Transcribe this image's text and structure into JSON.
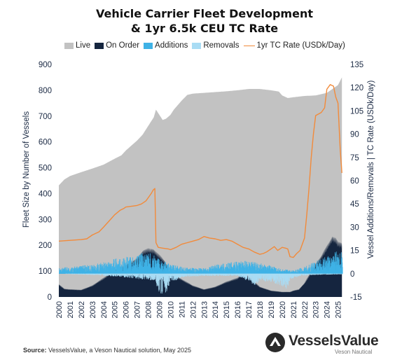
{
  "title_lines": [
    "Vehicle Carrier Fleet Development",
    "& 1yr 6.5k CEU TC Rate"
  ],
  "footer": {
    "source_label": "Source:",
    "source_text": " VesselsValue, a Veson Nautical solution, May 2025"
  },
  "logo": {
    "name": "VesselsValue",
    "sub": "Veson Nautical"
  },
  "colors": {
    "live": "#c2c2c2",
    "on_order": "#15253f",
    "additions": "#3fb2e6",
    "removals": "#a9dcf4",
    "tc_rate": "#f28a3a"
  },
  "chart_data": {
    "type": "area",
    "xlabel": "",
    "ylabel": "Fleet Size by Number of Vessels",
    "y2label": "Vessel Additions/Removals | TC Rate (USDk/Day)",
    "ylim": [
      0,
      900
    ],
    "yticks": [
      0,
      100,
      200,
      300,
      400,
      500,
      600,
      700,
      800,
      900
    ],
    "y2lim": [
      -15,
      135
    ],
    "y2ticks": [
      -15,
      0,
      15,
      30,
      45,
      60,
      75,
      90,
      105,
      120,
      135
    ],
    "xlim": [
      2000,
      2025.4
    ],
    "xticks": [
      "2000",
      "2001",
      "2002",
      "2003",
      "2004",
      "2005",
      "2006",
      "2007",
      "2008",
      "2009",
      "2010",
      "2011",
      "2012",
      "2013",
      "2014",
      "2015",
      "2016",
      "2017",
      "2018",
      "2019",
      "2020",
      "2021",
      "2022",
      "2023",
      "2024",
      "2025"
    ],
    "legend": [
      "Live",
      "On Order",
      "Additions",
      "Removals",
      "1yr TC Rate (USDk/Day)"
    ],
    "legend_position": "top",
    "grid": false,
    "series": [
      {
        "name": "Live",
        "axis": "left",
        "style": "area",
        "x": [
          2000,
          2000.5,
          2001,
          2002,
          2003,
          2004,
          2005,
          2005.6,
          2006,
          2007,
          2007.5,
          2008,
          2008.5,
          2008.7,
          2009,
          2009.3,
          2009.6,
          2010,
          2010.3,
          2011,
          2011.5,
          2012,
          2013,
          2014,
          2015,
          2016,
          2017,
          2018,
          2019,
          2019.7,
          2020,
          2020.5,
          2021,
          2022,
          2023,
          2024,
          2024.5,
          2025,
          2025.35
        ],
        "y": [
          432,
          455,
          468,
          483,
          497,
          512,
          535,
          548,
          567,
          605,
          628,
          662,
          695,
          725,
          705,
          685,
          690,
          705,
          725,
          760,
          782,
          787,
          790,
          793,
          796,
          800,
          805,
          805,
          800,
          795,
          780,
          770,
          773,
          778,
          780,
          790,
          805,
          820,
          850
        ]
      },
      {
        "name": "On Order",
        "axis": "left",
        "style": "area",
        "x": [
          2000,
          2000.5,
          2001,
          2002,
          2003,
          2004,
          2005,
          2006,
          2007,
          2007.5,
          2008,
          2008.5,
          2009,
          2009.5,
          2010,
          2011,
          2012,
          2013,
          2014,
          2015,
          2016,
          2016.5,
          2017,
          2018,
          2019,
          2020,
          2020.7,
          2021,
          2021.5,
          2022,
          2023,
          2023.5,
          2024,
          2024.5,
          2024.8,
          2025,
          2025.35
        ],
        "y": [
          50,
          32,
          30,
          28,
          45,
          75,
          105,
          125,
          150,
          180,
          190,
          185,
          165,
          140,
          95,
          70,
          45,
          30,
          40,
          60,
          75,
          95,
          80,
          40,
          25,
          20,
          20,
          25,
          30,
          55,
          130,
          160,
          200,
          235,
          230,
          215,
          210
        ]
      },
      {
        "name": "Additions",
        "axis": "right",
        "style": "bars",
        "x": [
          2000,
          2001,
          2002,
          2003,
          2004,
          2005,
          2006,
          2007,
          2008,
          2009,
          2010,
          2011,
          2012,
          2013,
          2014,
          2015,
          2016,
          2017,
          2018,
          2019,
          2020,
          2021,
          2022,
          2023,
          2024,
          2025,
          2025.35
        ],
        "y": [
          2.5,
          3,
          3.5,
          4,
          5,
          6.5,
          7.5,
          8.5,
          9.5,
          6.5,
          4,
          3,
          2.5,
          2.5,
          4,
          4.5,
          5.5,
          5.5,
          4.5,
          3.5,
          2,
          1.5,
          3,
          5.5,
          7.5,
          10,
          9
        ]
      },
      {
        "name": "Removals",
        "axis": "right",
        "style": "bars",
        "x": [
          2000,
          2004,
          2008.6,
          2008.9,
          2009.2,
          2009.6,
          2010,
          2011,
          2013,
          2016,
          2017.5,
          2018,
          2019,
          2019.8,
          2020.4,
          2020.7,
          2021.5,
          2023,
          2025.35
        ],
        "y": [
          0,
          -0.8,
          -3,
          -8,
          -10,
          -8,
          -4,
          -1.5,
          -1,
          -1,
          -5,
          -3,
          -4,
          -5,
          -7,
          -3,
          -1,
          -0.5,
          -0.3
        ]
      },
      {
        "name": "1yr TC Rate (USDk/Day)",
        "axis": "right",
        "style": "line",
        "x": [
          2000,
          2001,
          2002,
          2002.5,
          2003,
          2003.3,
          2003.6,
          2004,
          2004.5,
          2005,
          2005.5,
          2005.8,
          2006,
          2007,
          2007.4,
          2007.8,
          2008.1,
          2008.3,
          2008.45,
          2008.6,
          2008.7,
          2008.9,
          2009.3,
          2009.8,
          2010,
          2010.5,
          2011,
          2011.5,
          2012,
          2012.5,
          2013,
          2013.5,
          2014,
          2014.5,
          2015,
          2015.5,
          2016,
          2016.5,
          2017,
          2017.5,
          2018,
          2018.3,
          2018.6,
          2019,
          2019.3,
          2019.6,
          2020,
          2020.3,
          2020.5,
          2020.7,
          2021,
          2021.3,
          2021.6,
          2022,
          2022.2,
          2022.4,
          2022.6,
          2022.8,
          2023,
          2023.5,
          2023.8,
          2024,
          2024.3,
          2024.6,
          2024.8,
          2025,
          2025.2,
          2025.35
        ],
        "y": [
          21,
          21.5,
          22,
          22.5,
          25,
          26,
          27,
          30,
          34,
          38,
          41,
          42,
          43,
          44,
          45,
          47,
          50,
          52,
          54,
          55,
          20,
          17,
          16.5,
          16,
          15.5,
          17,
          19,
          20,
          21,
          22,
          24,
          23,
          22.5,
          21.5,
          22,
          21,
          19,
          17,
          16,
          14,
          12.5,
          13,
          14,
          16,
          17.5,
          15,
          17,
          16.5,
          16,
          11,
          10.5,
          13,
          15,
          23,
          38,
          55,
          75,
          90,
          102,
          104,
          107,
          119,
          122,
          121,
          114,
          110,
          80,
          65
        ]
      }
    ]
  }
}
